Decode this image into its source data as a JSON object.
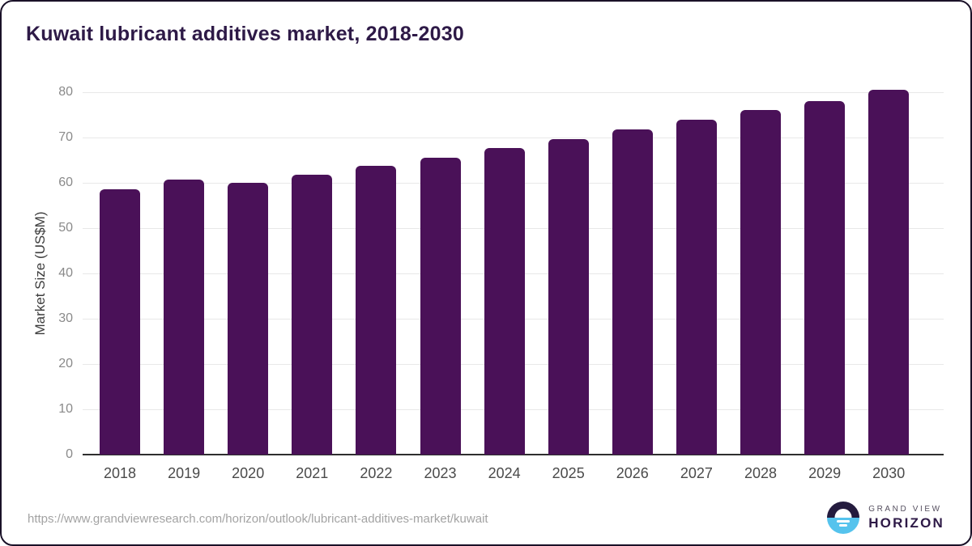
{
  "chart_data": {
    "type": "bar",
    "title": "Kuwait lubricant additives market, 2018-2030",
    "categories": [
      "2018",
      "2019",
      "2020",
      "2021",
      "2022",
      "2023",
      "2024",
      "2025",
      "2026",
      "2027",
      "2028",
      "2029",
      "2030"
    ],
    "values": [
      58.5,
      60.7,
      60.0,
      61.7,
      63.7,
      65.5,
      67.7,
      69.7,
      71.7,
      73.9,
      76.0,
      78.0,
      80.5
    ],
    "xlabel": "",
    "ylabel": "Market Size (US$M)",
    "ylim": [
      0,
      80
    ],
    "yticks": [
      0,
      10,
      20,
      30,
      40,
      50,
      60,
      70,
      80
    ],
    "grid": true,
    "legend": false
  },
  "footer": {
    "source_url": "https://www.grandviewresearch.com/horizon/outlook/lubricant-additives-market/kuwait",
    "logo": {
      "top": "GRAND VIEW",
      "bottom": "HORIZON"
    }
  },
  "colors": {
    "bar": "#4a1158",
    "title": "#2e1a47",
    "grid": "#e8e8e8",
    "axis_line": "#2e2e2e",
    "y_tick_label": "#8a8a8a",
    "x_tick_label": "#4a4a4a",
    "y_axis_title": "#3d3d3d",
    "url_text": "#a3a3a3",
    "logo_dark": "#241b3e",
    "logo_blue": "#55c3ed",
    "brand_top_text": "#554f5f",
    "brand_bottom_text": "#2e1a47"
  }
}
